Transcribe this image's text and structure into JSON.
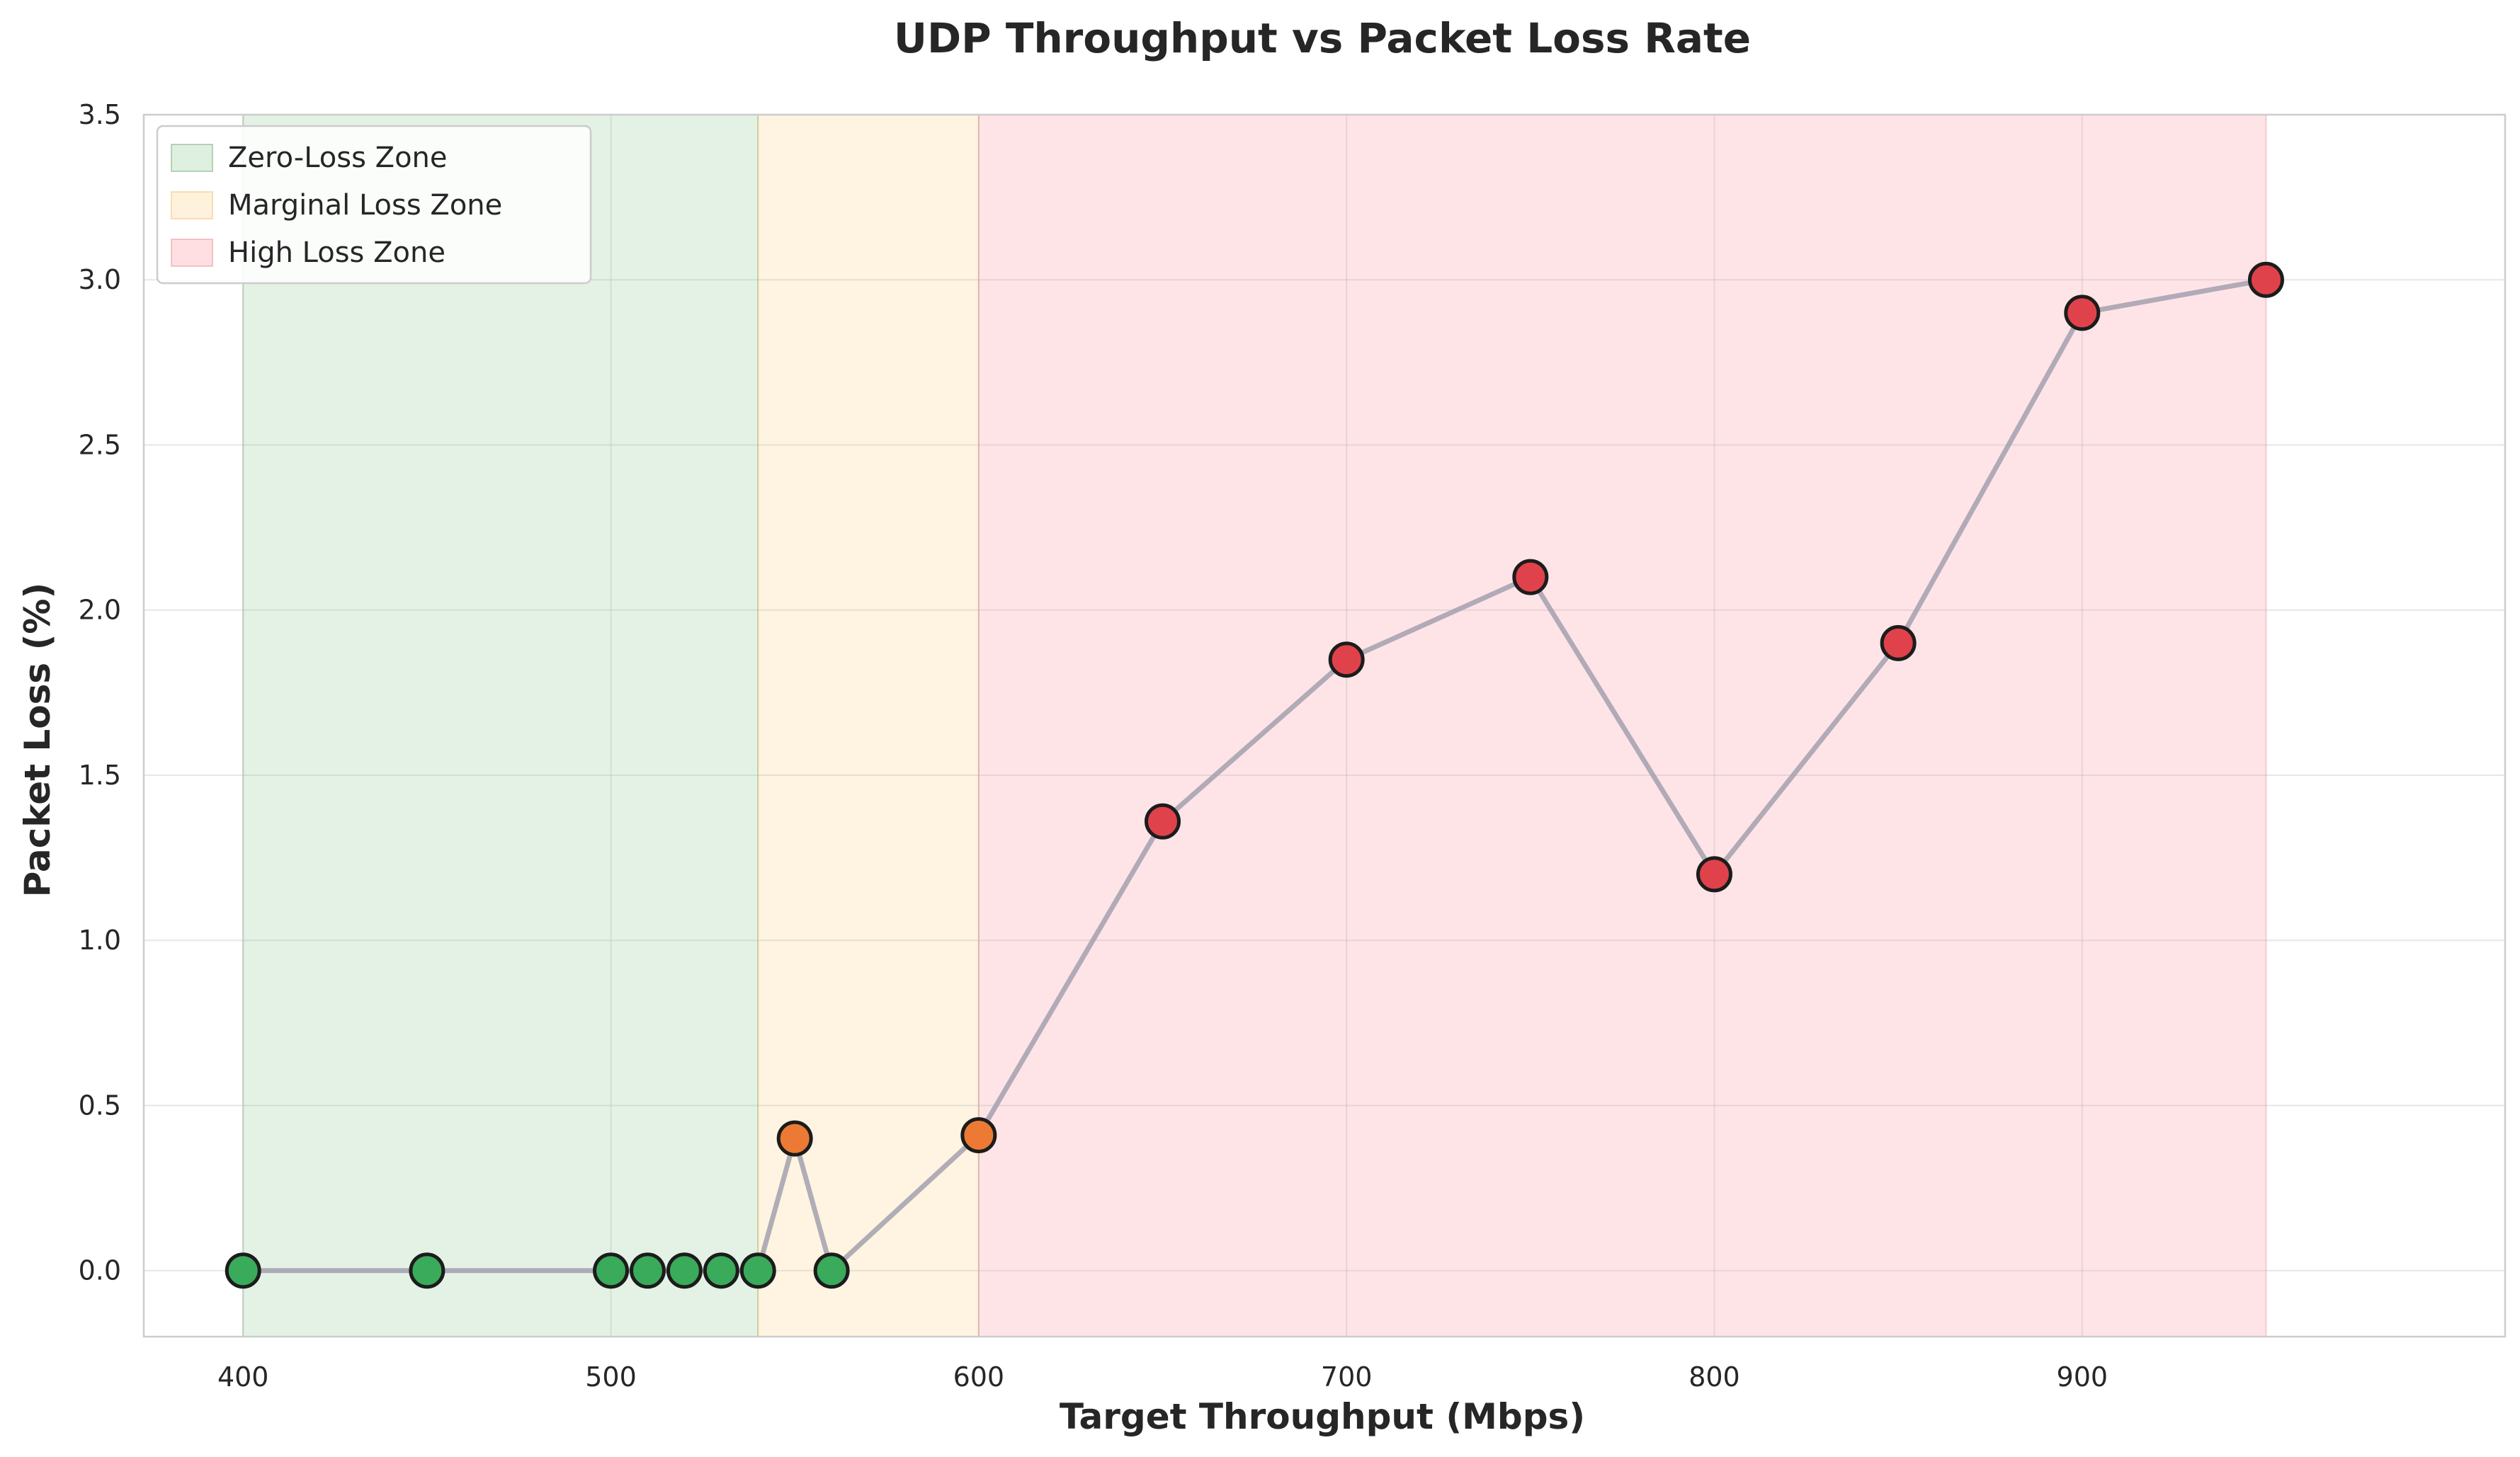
{
  "chart_data": {
    "type": "scatter",
    "title": "UDP Throughput vs Packet Loss Rate",
    "xlabel": "Target Throughput (Mbps)",
    "ylabel": "Packet Loss (%)",
    "xlim": [
      373,
      1015
    ],
    "ylim": [
      -0.2,
      3.5
    ],
    "xticks": [
      400,
      500,
      600,
      700,
      800,
      900
    ],
    "yticks": [
      0.0,
      0.5,
      1.0,
      1.5,
      2.0,
      2.5,
      3.0,
      3.5
    ],
    "xtick_labels": [
      "400",
      "500",
      "600",
      "700",
      "800",
      "900"
    ],
    "ytick_labels": [
      "0.0",
      "0.5",
      "1.0",
      "1.5",
      "2.0",
      "2.5",
      "3.0",
      "3.5"
    ],
    "grid": true,
    "legend_position": "top-left",
    "zones": [
      {
        "name": "Zero-Loss Zone",
        "x_start": 400,
        "x_end": 540,
        "color": "#c8e6c9",
        "edge": "#2e7d32"
      },
      {
        "name": "Marginal Loss Zone",
        "x_start": 540,
        "x_end": 600,
        "color": "#ffe9c4",
        "edge": "#e0a030"
      },
      {
        "name": "High Loss Zone",
        "x_start": 600,
        "x_end": 950,
        "color": "#ffc9cf",
        "edge": "#e05560"
      }
    ],
    "line_color": "#a3a0ae",
    "points": [
      {
        "x": 400,
        "y": 0.0,
        "color": "#3aaa5b"
      },
      {
        "x": 450,
        "y": 0.0,
        "color": "#3aaa5b"
      },
      {
        "x": 500,
        "y": 0.0,
        "color": "#3aaa5b"
      },
      {
        "x": 510,
        "y": 0.0,
        "color": "#3aaa5b"
      },
      {
        "x": 520,
        "y": 0.0,
        "color": "#3aaa5b"
      },
      {
        "x": 530,
        "y": 0.0,
        "color": "#3aaa5b"
      },
      {
        "x": 540,
        "y": 0.0,
        "color": "#3aaa5b"
      },
      {
        "x": 550,
        "y": 0.4,
        "color": "#ec7a34"
      },
      {
        "x": 560,
        "y": 0.0,
        "color": "#3aaa5b"
      },
      {
        "x": 600,
        "y": 0.41,
        "color": "#ec7a34"
      },
      {
        "x": 650,
        "y": 1.36,
        "color": "#e0424b"
      },
      {
        "x": 700,
        "y": 1.85,
        "color": "#e0424b"
      },
      {
        "x": 750,
        "y": 2.1,
        "color": "#e0424b"
      },
      {
        "x": 800,
        "y": 1.2,
        "color": "#e0424b"
      },
      {
        "x": 850,
        "y": 1.9,
        "color": "#e0424b"
      },
      {
        "x": 900,
        "y": 2.9,
        "color": "#e0424b"
      },
      {
        "x": 950,
        "y": 3.0,
        "color": "#e0424b"
      }
    ]
  }
}
